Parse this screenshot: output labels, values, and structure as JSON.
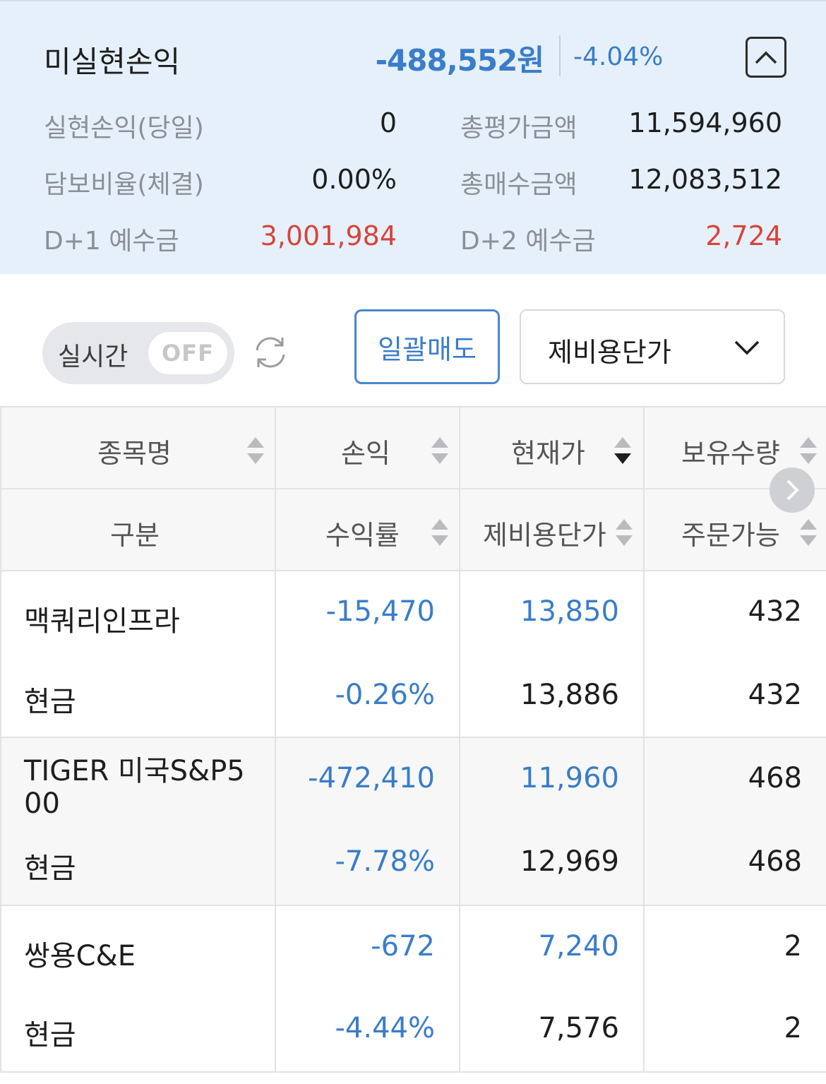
{
  "summary": {
    "title": "미실현손익",
    "amount": "-488,552원",
    "rate": "-4.04%",
    "rows": [
      {
        "left_label": "실현손익(당일)",
        "left_value": "0",
        "right_label": "총평가금액",
        "right_value": "11,594,960"
      },
      {
        "left_label": "담보비율(체결)",
        "left_value": "0.00%",
        "right_label": "총매수금액",
        "right_value": "12,083,512"
      },
      {
        "left_label": "D+1 예수금",
        "left_value": "3,001,984",
        "right_label": "D+2 예수금",
        "right_value": "2,724"
      }
    ]
  },
  "controls": {
    "realtime_label": "실시간",
    "realtime_state": "OFF",
    "bulk_sell_label": "일괄매도",
    "select_value": "제비용단가"
  },
  "table": {
    "header_row1": [
      "종목명",
      "손익",
      "현재가",
      "보유수량"
    ],
    "header_row2": [
      "구분",
      "수익률",
      "제비용단가",
      "주문가능"
    ],
    "rows": [
      {
        "name": "맥쿼리인프라",
        "type": "현금",
        "pnl": "-15,470",
        "rate": "-0.26%",
        "price": "13,850",
        "cost": "13,886",
        "qty": "432",
        "orderable": "432"
      },
      {
        "name": "TIGER 미국S&P500",
        "name_line1": "TIGER 미국S&P5",
        "name_line2": "00",
        "type": "현금",
        "pnl": "-472,410",
        "rate": "-7.78%",
        "price": "11,960",
        "cost": "12,969",
        "qty": "468",
        "orderable": "468"
      },
      {
        "name": "쌍용C&E",
        "type": "현금",
        "pnl": "-672",
        "rate": "-4.44%",
        "price": "7,240",
        "cost": "7,576",
        "qty": "2",
        "orderable": "2"
      }
    ]
  },
  "icons": {
    "collapse": "chevron-up-icon",
    "refresh": "refresh-icon",
    "dropdown": "chevron-down-icon",
    "sort": "sort-icon",
    "scroll": "chevron-right-icon"
  },
  "colors": {
    "negative_blue": "#3a7dc9",
    "positive_red": "#d6453b",
    "summary_bg": "#e6f0fb"
  }
}
